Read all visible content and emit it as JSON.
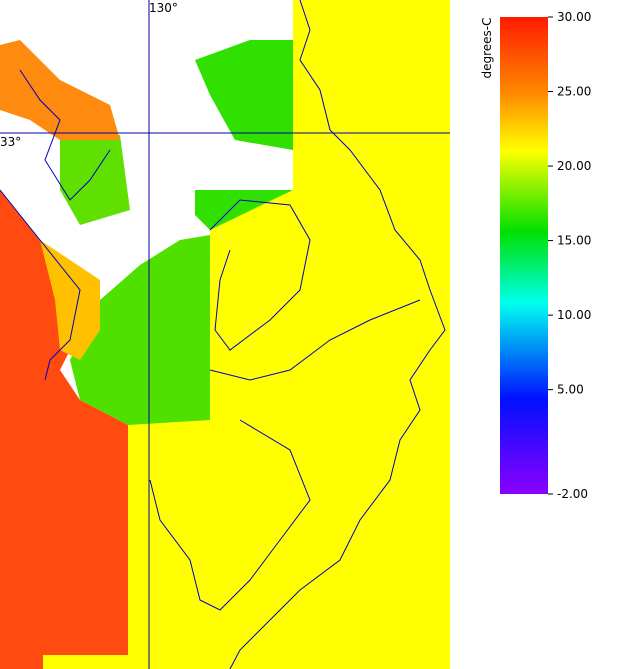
{
  "map": {
    "lon_label": "130°",
    "lat_label": "33°"
  },
  "colorbar": {
    "title": "degrees-C",
    "lim": [
      -2,
      30
    ],
    "ticks": [
      {
        "value": 30,
        "label": "30.00"
      },
      {
        "value": 25,
        "label": "25.00"
      },
      {
        "value": 20,
        "label": "20.00"
      },
      {
        "value": 15,
        "label": "15.00"
      },
      {
        "value": 10,
        "label": "10.00"
      },
      {
        "value": 5,
        "label": "5.00"
      },
      {
        "value": -2,
        "label": "-2.00"
      }
    ]
  }
}
